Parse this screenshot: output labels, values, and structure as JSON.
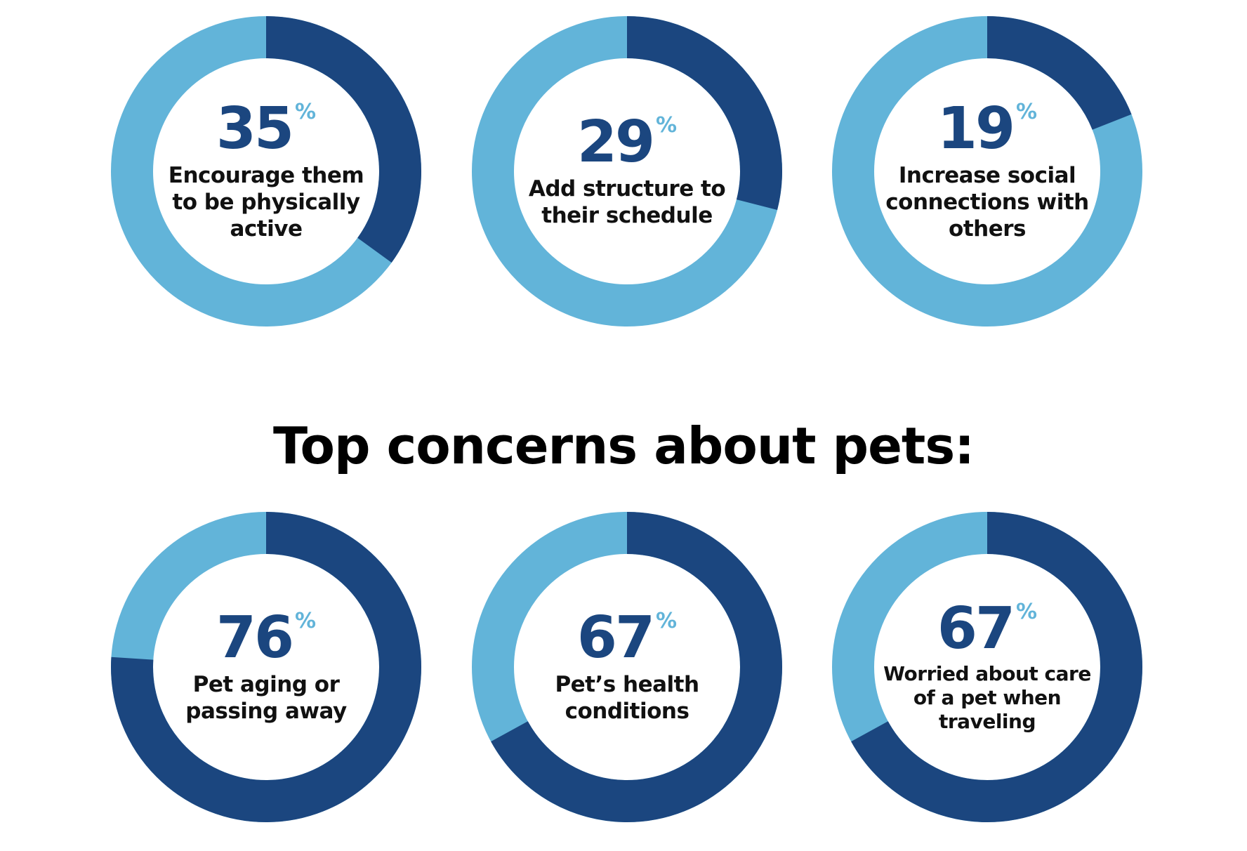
{
  "colors": {
    "dark": "#1b467f",
    "light": "#62b4d9",
    "text": "#111111"
  },
  "heading": "Top concerns about pets:",
  "chart_data": [
    {
      "type": "pie",
      "value": 35,
      "unit": "%",
      "label": "Encourage them to be physically active"
    },
    {
      "type": "pie",
      "value": 29,
      "unit": "%",
      "label": "Add structure to their schedule"
    },
    {
      "type": "pie",
      "value": 19,
      "unit": "%",
      "label": "Increase social connections with others"
    },
    {
      "type": "pie",
      "value": 76,
      "unit": "%",
      "label": "Pet aging or passing away"
    },
    {
      "type": "pie",
      "value": 67,
      "unit": "%",
      "label": "Pet’s health conditions"
    },
    {
      "type": "pie",
      "value": 67,
      "unit": "%",
      "label": "Worried about care of a pet when traveling"
    }
  ]
}
